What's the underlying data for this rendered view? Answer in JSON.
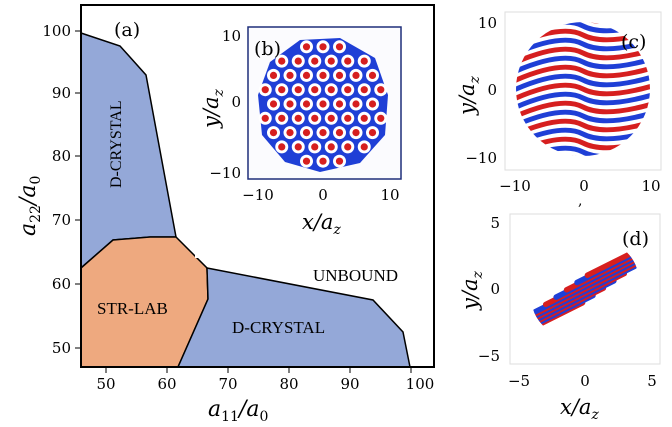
{
  "panel_labels": {
    "a": "(a)",
    "b": "(b)",
    "c": "(c)",
    "d": "(d)"
  },
  "phase_diagram": {
    "regions": {
      "d_crystal_top": "D-CRYSTAL",
      "str_lab": "STR-LAB",
      "d_crystal_bottom": "D-CRYSTAL",
      "unbound": "UNBOUND"
    },
    "colors": {
      "crystal": "#94a8d8",
      "str_lab": "#eea97f"
    }
  },
  "colors": {
    "density_red": "#d61f1f",
    "density_blue": "#1f3fd6"
  },
  "axes": {
    "a": {
      "xlabel_main": "a",
      "xlabel_sub": "11",
      "xlabel_div": "/a",
      "xlabel_sub2": "0",
      "ylabel_main": "a",
      "ylabel_sub": "22",
      "ylabel_div": "/a",
      "ylabel_sub2": "0",
      "xticks": [
        "50",
        "60",
        "70",
        "80",
        "90",
        "100"
      ],
      "yticks": [
        "100",
        "90",
        "80",
        "70",
        "60",
        "50"
      ]
    },
    "b": {
      "xlabel": "x/a",
      "xsub": "z",
      "ylabel": "y/a",
      "ysub": "z",
      "xticks": [
        "−10",
        "0",
        "10"
      ],
      "yticks": [
        "10",
        "0",
        "−10"
      ]
    },
    "c": {
      "ylabel": "y/a",
      "ysub": "z",
      "xticks": [
        "−10",
        "0",
        "10"
      ],
      "yticks": [
        "10",
        "0",
        "−10"
      ],
      "xlabel_partial": ","
    },
    "d": {
      "xlabel": "x/a",
      "xsub": "z",
      "ylabel": "y/a",
      "ysub": "z",
      "xticks": [
        "−5",
        "0",
        "5"
      ],
      "yticks": [
        "5",
        "0",
        "−5"
      ]
    }
  }
}
